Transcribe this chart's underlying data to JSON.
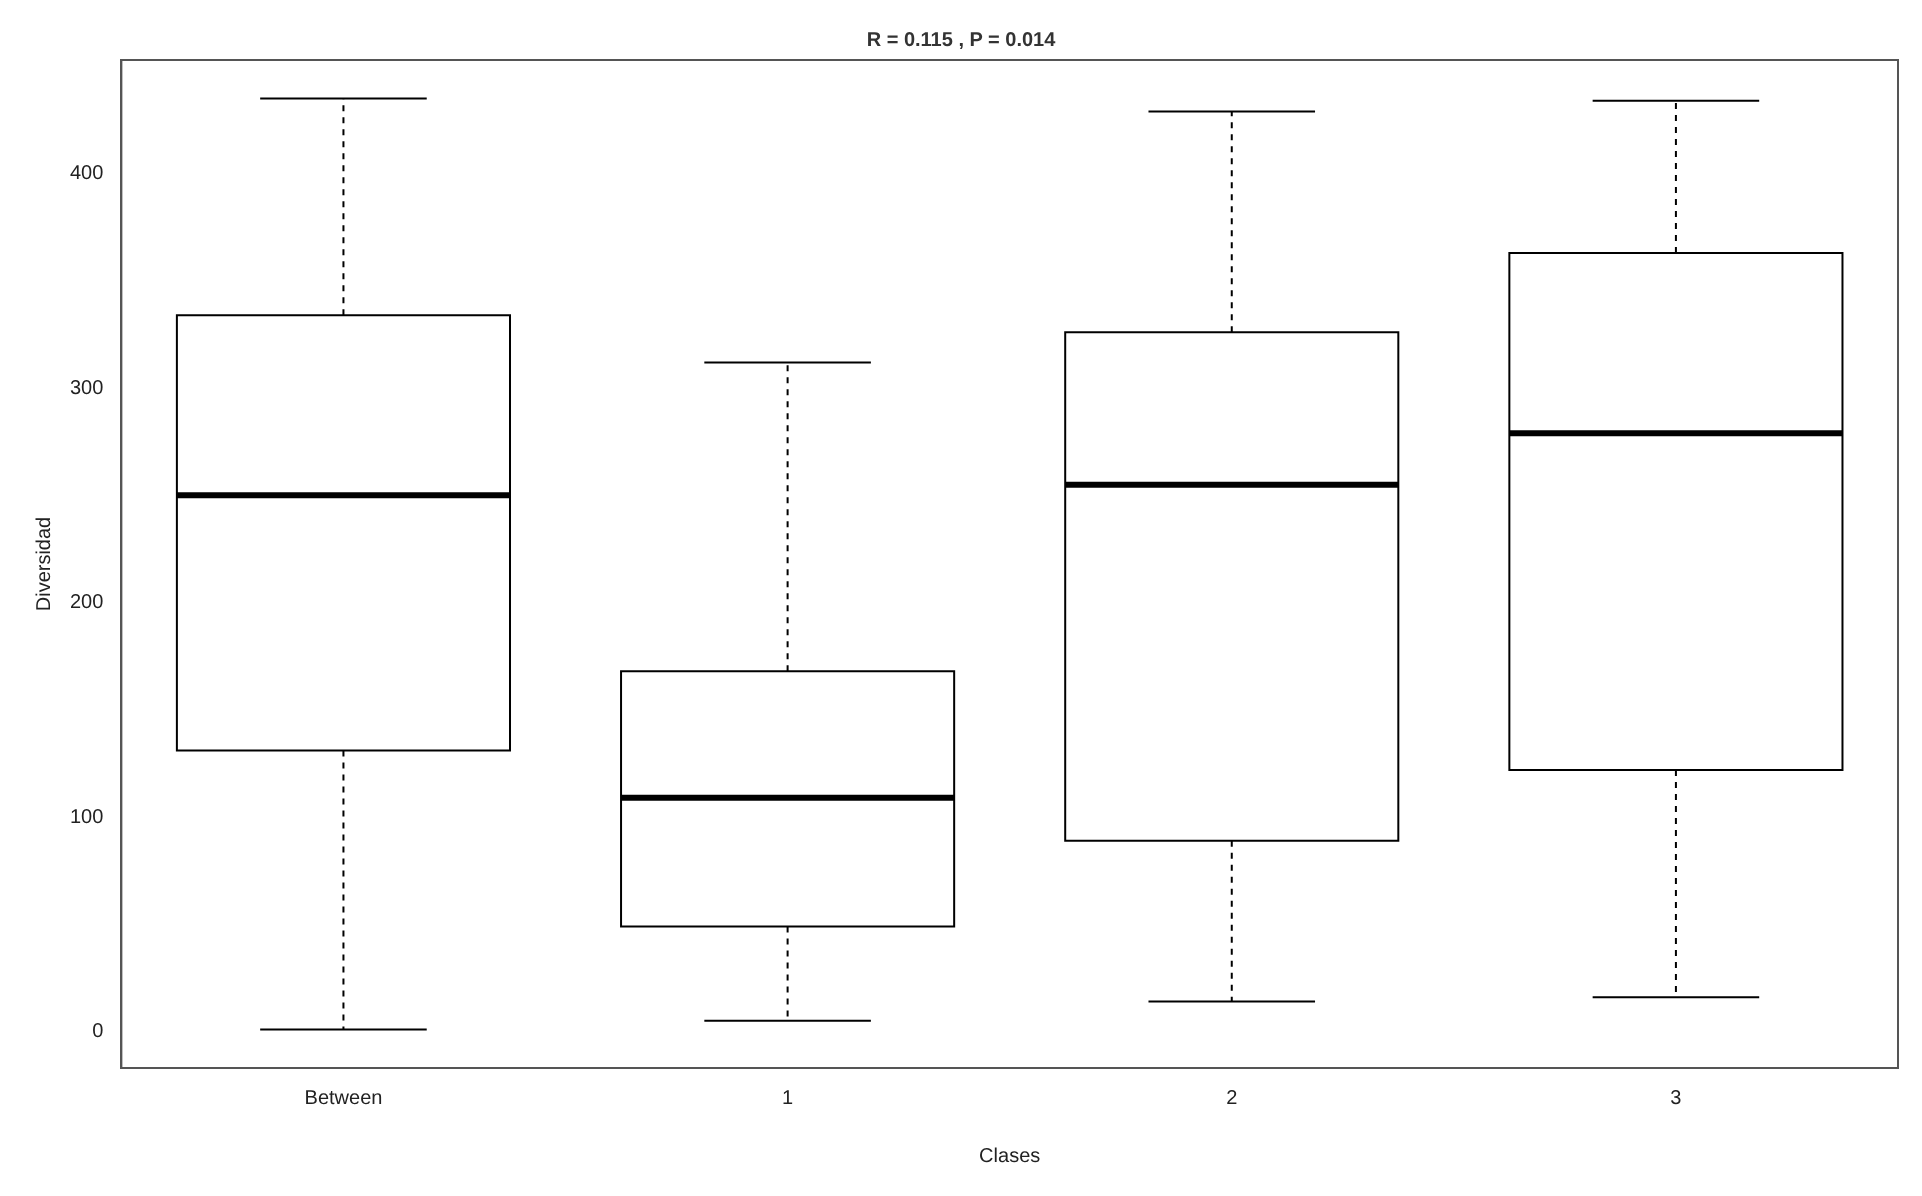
{
  "chart_data": {
    "type": "box",
    "title": "R = 0.115 , P = 0.014",
    "xlabel": "Clases",
    "ylabel": "Diversidad",
    "categories": [
      "Between",
      "1",
      "2",
      "3"
    ],
    "boxes": [
      {
        "low": 1,
        "q1": 131,
        "median": 250,
        "q3": 334,
        "high": 435
      },
      {
        "low": 5,
        "q1": 49,
        "median": 109,
        "q3": 168,
        "high": 312
      },
      {
        "low": 14,
        "q1": 89,
        "median": 255,
        "q3": 326,
        "high": 429
      },
      {
        "low": 16,
        "q1": 122,
        "median": 279,
        "q3": 363,
        "high": 434
      }
    ],
    "color": "#000000",
    "ylim": [
      -17,
      453
    ],
    "yticks": [
      0,
      100,
      200,
      300,
      400
    ],
    "grid": false,
    "legend": false,
    "line_style": "dashed"
  }
}
